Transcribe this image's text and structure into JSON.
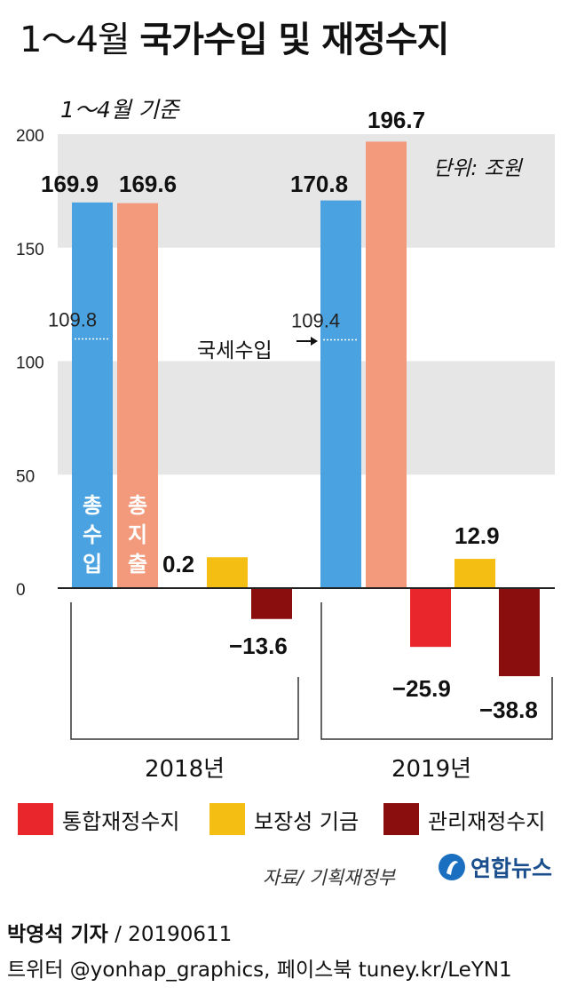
{
  "title": {
    "period": "1～4월",
    "main": "국가수입 및 재정수지"
  },
  "basis": "1～4월 기준",
  "unit": "단위: 조원",
  "colors": {
    "total_revenue": "#4aa3e0",
    "total_expenditure": "#f29a7b",
    "integrated_balance": "#e8262b",
    "security_funds": "#f5be12",
    "managed_balance": "#8b0e0e",
    "band": "#e6e6e6"
  },
  "chart_data": {
    "type": "bar",
    "categories": [
      "2018년",
      "2019년"
    ],
    "ylim": [
      -40,
      200
    ],
    "yticks": [
      "200",
      "150",
      "100",
      "50",
      "0"
    ],
    "series": [
      {
        "name": "총수입",
        "values": [
          169.9,
          170.8
        ],
        "labels": [
          "169.9",
          "170.8"
        ],
        "inbar": [
          "총",
          "수",
          "입"
        ]
      },
      {
        "name": "총지출",
        "values": [
          169.6,
          196.7
        ],
        "labels": [
          "169.6",
          "196.7"
        ],
        "inbar": [
          "총",
          "지",
          "출"
        ]
      },
      {
        "name": "통합재정수지",
        "values": [
          0.2,
          -25.9
        ],
        "labels": [
          "0.2",
          "−25.9"
        ]
      },
      {
        "name": "보장성 기금",
        "values": [
          13.6,
          12.9
        ],
        "labels": [
          "",
          "12.9"
        ]
      },
      {
        "name": "관리재정수지",
        "values": [
          -13.6,
          -38.8
        ],
        "labels": [
          "−13.6",
          "−38.8"
        ]
      }
    ],
    "national_tax": {
      "name": "국세수입",
      "values": [
        109.8,
        109.4
      ],
      "labels": [
        "109.8",
        "109.4"
      ]
    }
  },
  "legend": [
    "통합재정수지",
    "보장성 기금",
    "관리재정수지"
  ],
  "source": "자료/ 기획재정부",
  "logo": "연합뉴스",
  "byline": {
    "reporter": "박영석 기자",
    "date": "/ 20190611"
  },
  "social": "트위터 @yonhap_graphics, 페이스북 tuney.kr/LeYN1"
}
